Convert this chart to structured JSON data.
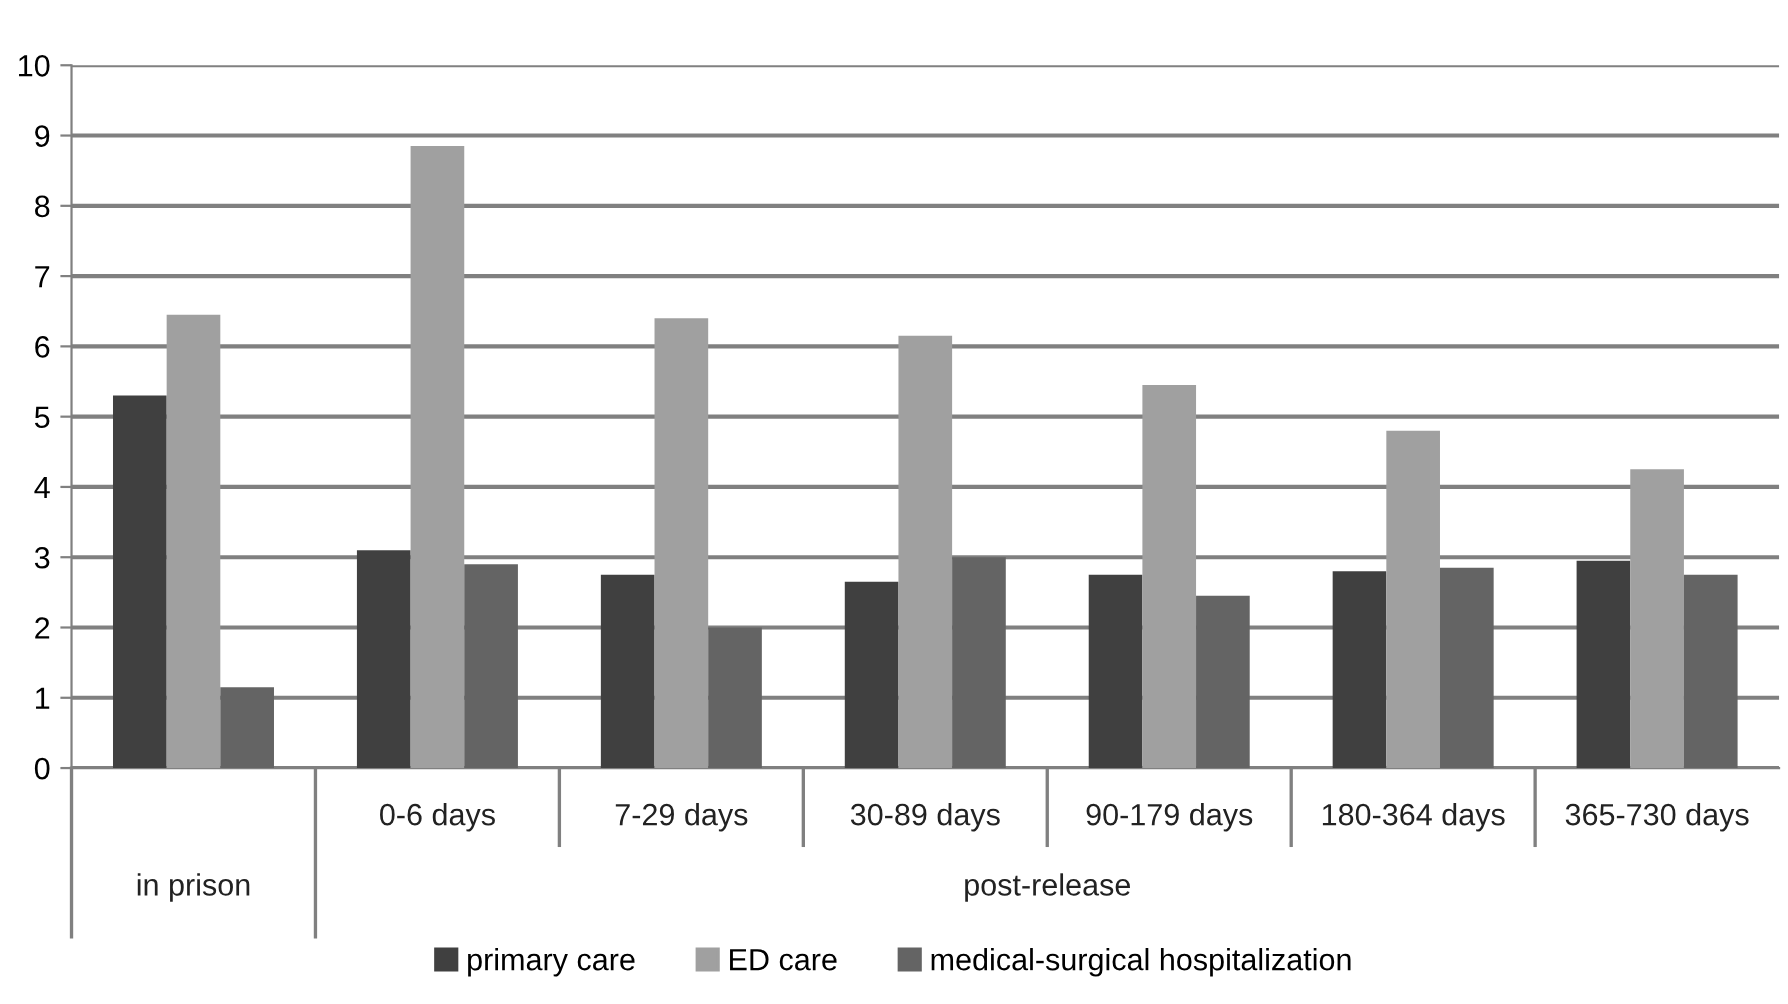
{
  "chart_data": {
    "type": "bar",
    "categories": [
      null,
      "0-6 days",
      "7-29 days",
      "30-89 days",
      "90-179 days",
      "180-364 days",
      "365-730 days"
    ],
    "series": [
      {
        "name": "primary care",
        "color": "#404040",
        "values": [
          5.3,
          3.1,
          2.75,
          2.65,
          2.75,
          2.8,
          2.95
        ]
      },
      {
        "name": "ED care",
        "color": "#a0a0a0",
        "values": [
          6.45,
          8.85,
          6.4,
          6.15,
          5.45,
          4.8,
          4.25
        ]
      },
      {
        "name": "medical-surgical hospitalization",
        "color": "#646464",
        "values": [
          1.15,
          2.9,
          2.0,
          3.0,
          2.45,
          2.85,
          2.75
        ]
      }
    ],
    "annotations": [
      "in prison",
      "post-release"
    ],
    "ylim": [
      0,
      10
    ],
    "yticks": [
      0,
      1,
      2,
      3,
      4,
      5,
      6,
      7,
      8,
      9,
      10
    ],
    "grid": "y",
    "legend": "bottom"
  }
}
